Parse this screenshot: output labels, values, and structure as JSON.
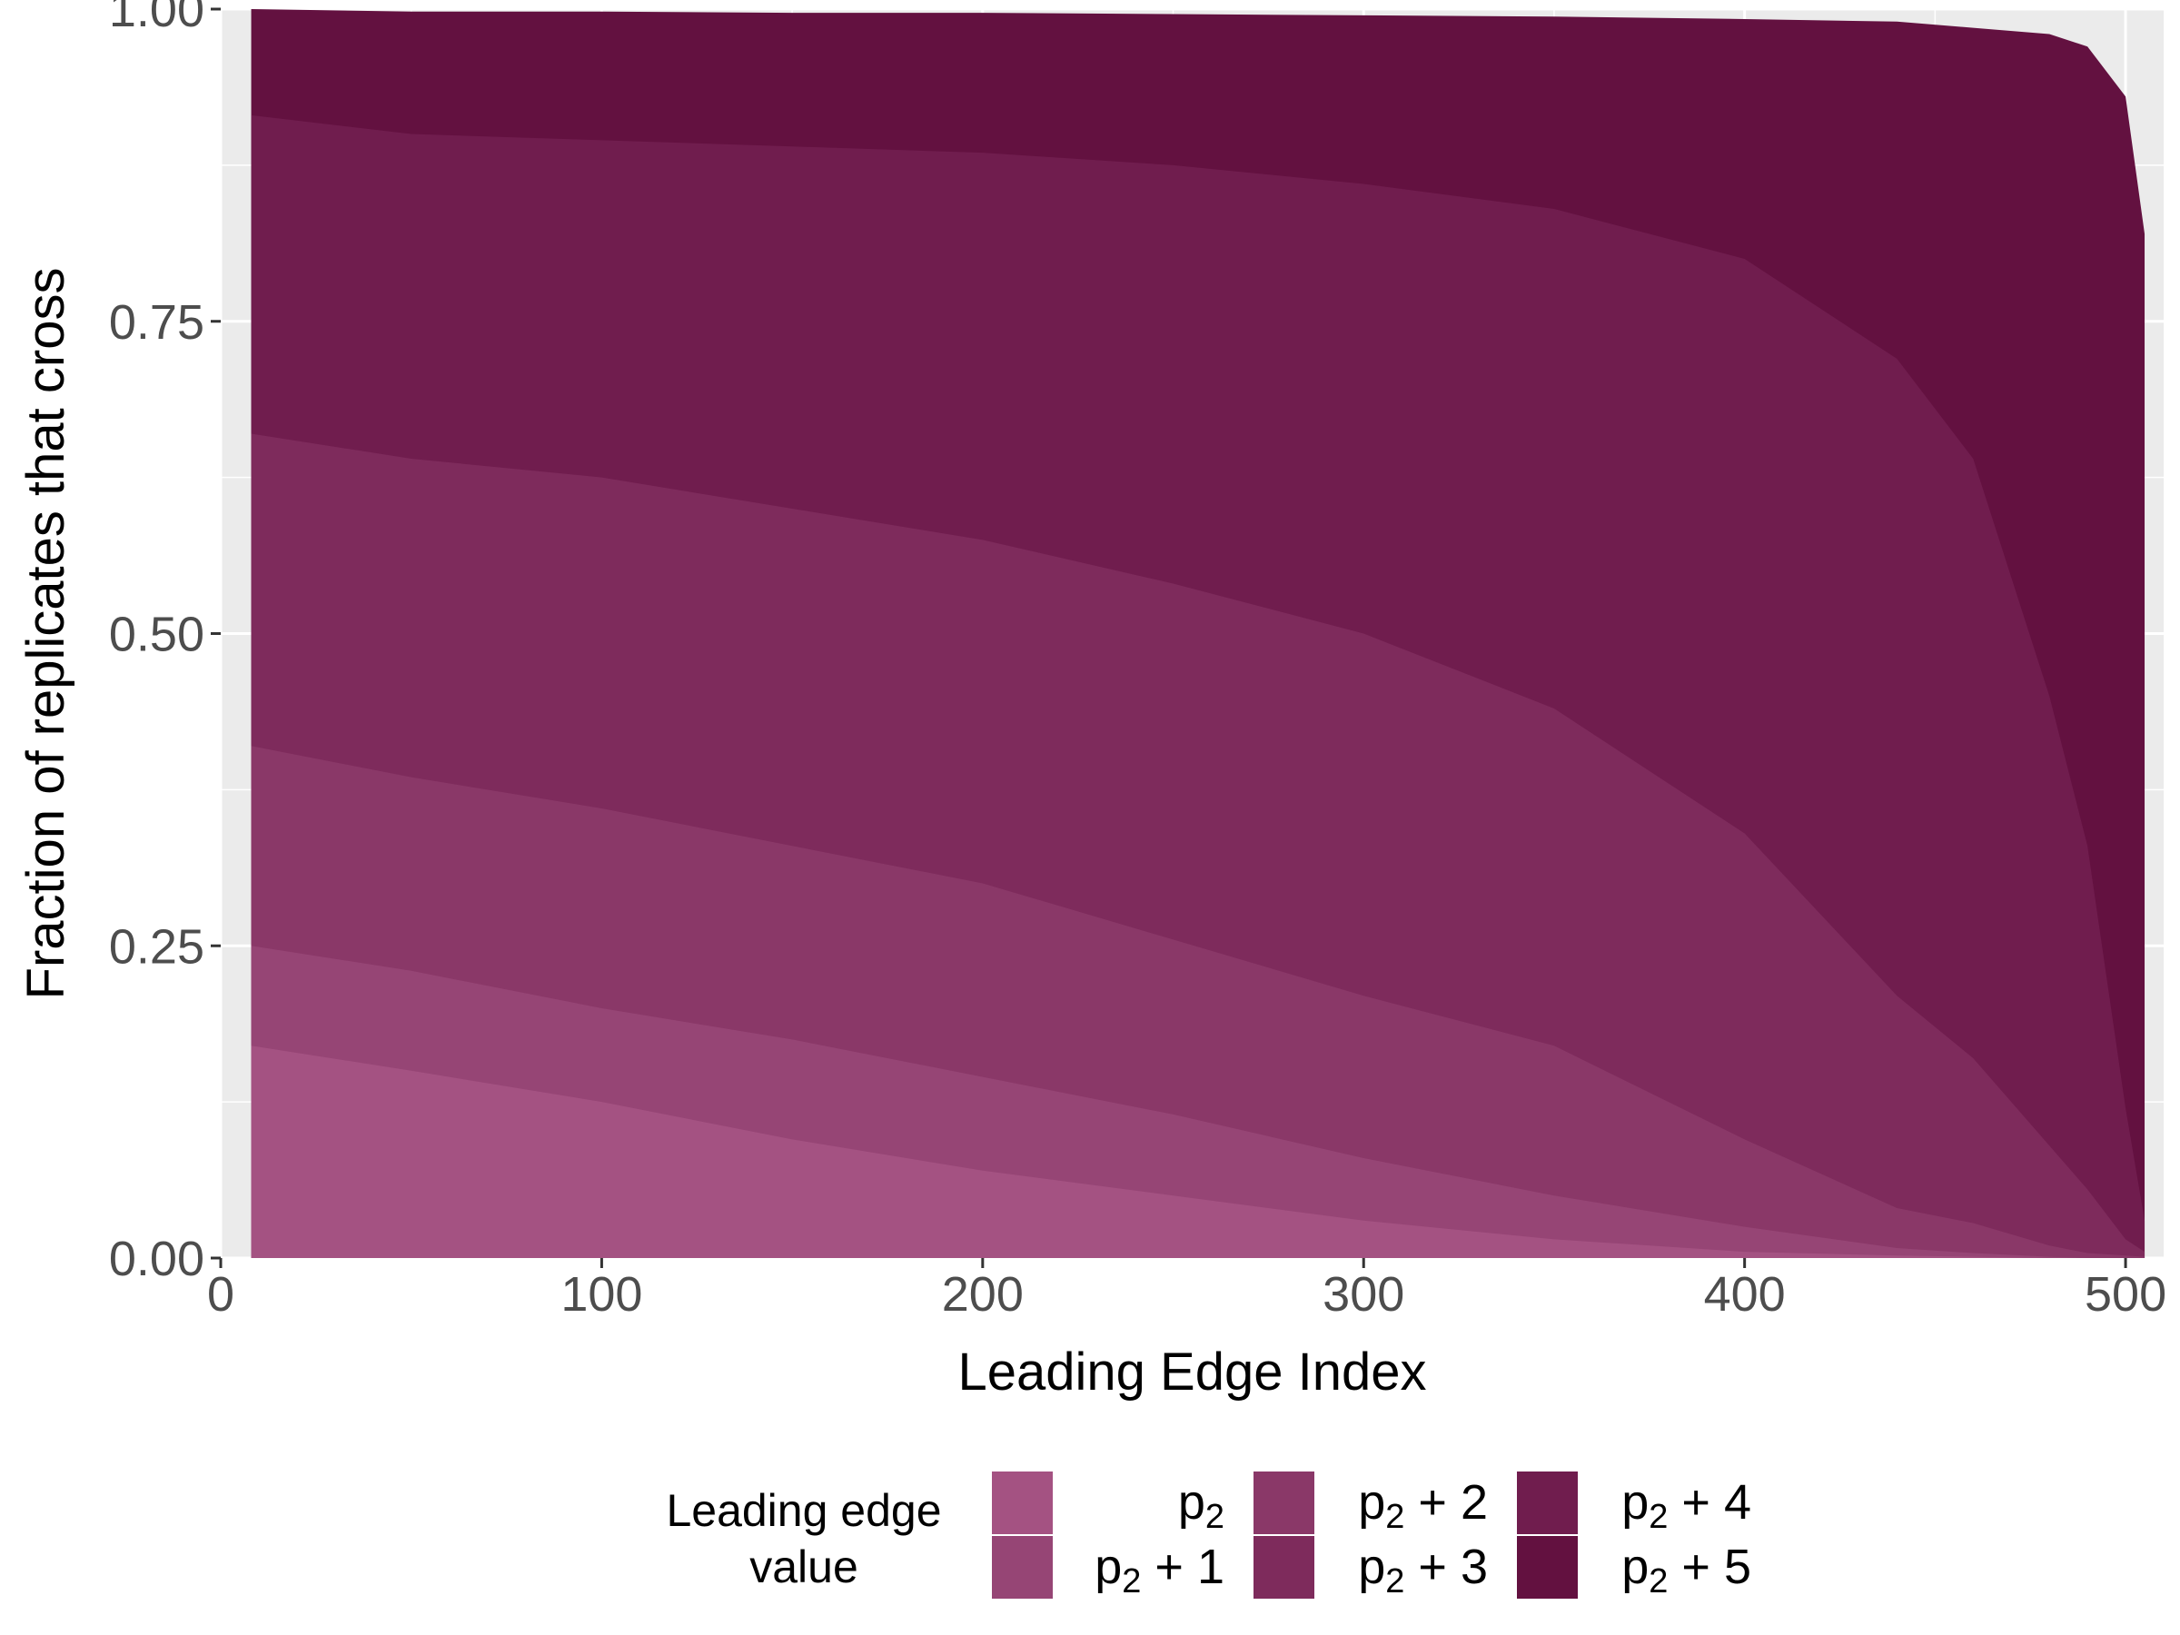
{
  "chart_data": {
    "type": "area",
    "stacked": true,
    "xlabel": "Leading Edge Index",
    "ylabel": "Fraction of replicates that cross",
    "xlim": [
      0,
      510
    ],
    "ylim": [
      0,
      1
    ],
    "x_ticks": [
      0,
      100,
      200,
      300,
      400,
      500
    ],
    "x_tick_labels": [
      "0",
      "100",
      "200",
      "300",
      "400",
      "500"
    ],
    "y_ticks": [
      0,
      0.25,
      0.5,
      0.75,
      1
    ],
    "y_tick_labels": [
      "0.00",
      "0.25",
      "0.50",
      "0.75",
      "1.00"
    ],
    "grid": true,
    "background": "#ebebeb",
    "legend": {
      "title_lines": [
        "Leading edge",
        "value"
      ],
      "position": "bottom",
      "columns": 3
    },
    "x": [
      8,
      50,
      100,
      150,
      200,
      250,
      300,
      350,
      400,
      440,
      460,
      480,
      490,
      500,
      505
    ],
    "series": [
      {
        "name": "p2",
        "base": "p",
        "sub": "2",
        "suffix": "",
        "color": "#a45282",
        "values": [
          0.17,
          0.15,
          0.125,
          0.095,
          0.07,
          0.05,
          0.03,
          0.015,
          0.005,
          0.002,
          0.001,
          0.0,
          0.0,
          0.0,
          0.0
        ]
      },
      {
        "name": "p2 + 1",
        "base": "p",
        "sub": "2",
        "suffix": " + 1",
        "color": "#964575",
        "values": [
          0.25,
          0.23,
          0.2,
          0.175,
          0.145,
          0.115,
          0.08,
          0.05,
          0.025,
          0.008,
          0.004,
          0.001,
          0.0,
          0.0,
          0.0
        ]
      },
      {
        "name": "p2 + 2",
        "base": "p",
        "sub": "2",
        "suffix": " + 2",
        "color": "#8a3868",
        "values": [
          0.41,
          0.385,
          0.36,
          0.33,
          0.3,
          0.255,
          0.21,
          0.17,
          0.095,
          0.04,
          0.028,
          0.01,
          0.004,
          0.002,
          0.001
        ]
      },
      {
        "name": "p2 + 3",
        "base": "p",
        "sub": "2",
        "suffix": " + 3",
        "color": "#7e2b5c",
        "values": [
          0.66,
          0.64,
          0.625,
          0.6,
          0.575,
          0.54,
          0.5,
          0.44,
          0.34,
          0.21,
          0.16,
          0.09,
          0.055,
          0.015,
          0.005
        ]
      },
      {
        "name": "p2 + 4",
        "base": "p",
        "sub": "2",
        "suffix": " + 4",
        "color": "#701d4e",
        "values": [
          0.915,
          0.9,
          0.895,
          0.89,
          0.885,
          0.875,
          0.86,
          0.84,
          0.8,
          0.72,
          0.64,
          0.45,
          0.33,
          0.12,
          0.03
        ]
      },
      {
        "name": "p2 + 5",
        "base": "p",
        "sub": "2",
        "suffix": " + 5",
        "color": "#631140",
        "values": [
          1.0,
          0.998,
          0.998,
          0.997,
          0.997,
          0.996,
          0.995,
          0.994,
          0.992,
          0.99,
          0.985,
          0.98,
          0.97,
          0.93,
          0.82
        ]
      }
    ]
  }
}
